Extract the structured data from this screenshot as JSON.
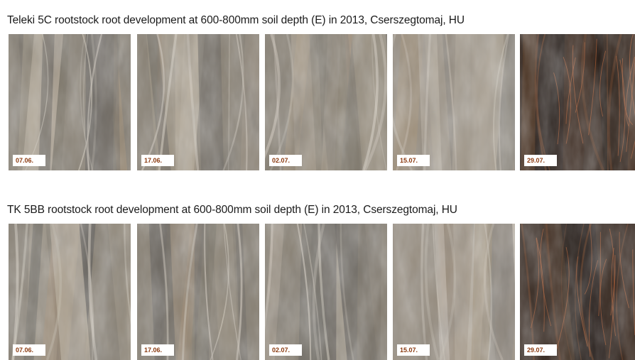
{
  "rows": [
    {
      "title": "Teleki 5C rootstock root development at 600-800mm soil depth (E) in 2013, Cserszegtomaj, HU",
      "panels": [
        {
          "date": "07.06.",
          "style": "soil-grey"
        },
        {
          "date": "17.06.",
          "style": "soil-grey"
        },
        {
          "date": "02.07.",
          "style": "soil-grey"
        },
        {
          "date": "15.07.",
          "style": "soil-light"
        },
        {
          "date": "29.07.",
          "style": "dark-roots"
        }
      ]
    },
    {
      "title": "TK 5BB rootstock root development at 600-800mm soil depth (E) in 2013, Cserszegtomaj, HU",
      "panels": [
        {
          "date": "07.06.",
          "style": "soil-grey"
        },
        {
          "date": "17.06.",
          "style": "soil-grey"
        },
        {
          "date": "02.07.",
          "style": "soil-grey"
        },
        {
          "date": "15.07.",
          "style": "soil-light"
        },
        {
          "date": "29.07.",
          "style": "dark-roots"
        }
      ]
    }
  ]
}
